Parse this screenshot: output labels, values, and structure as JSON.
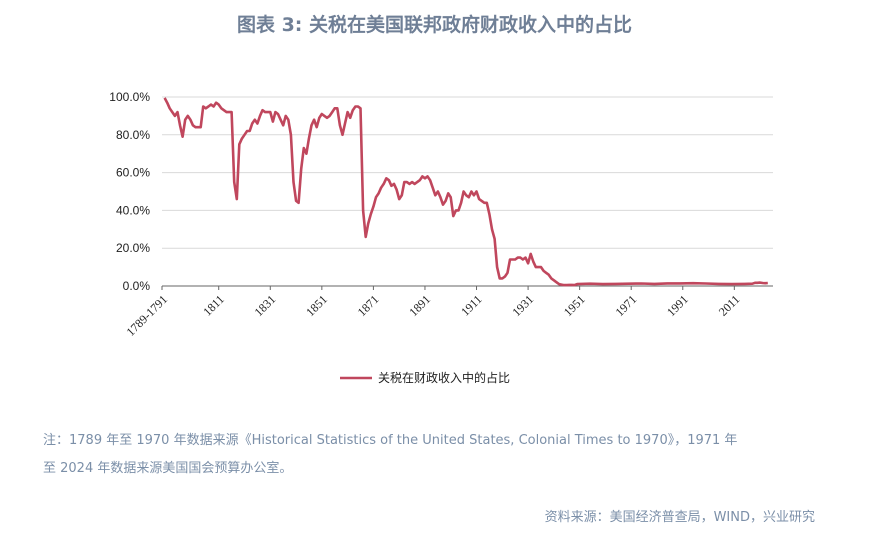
{
  "title": "图表 3:  关税在美国联邦政府财政收入中的占比",
  "note_line1": "注：1789 年至 1970 年数据来源《Historical Statistics of the United States, Colonial Times to 1970》，1971 年",
  "note_line2": "至 2024 年数据来源美国国会预算办公室。",
  "source": "资料来源：美国经济普查局，WIND，兴业研究",
  "colors": {
    "series": "#c0475d",
    "grid": "#d9d9d9",
    "axis": "#666666"
  },
  "chart_data": {
    "type": "line",
    "series": [
      {
        "name": "关税在财政收入中的占比",
        "x": [
          1790,
          1791,
          1792,
          1793,
          1794,
          1795,
          1796,
          1797,
          1798,
          1799,
          1800,
          1801,
          1802,
          1803,
          1804,
          1805,
          1806,
          1807,
          1808,
          1809,
          1810,
          1811,
          1812,
          1813,
          1814,
          1815,
          1816,
          1817,
          1818,
          1819,
          1820,
          1821,
          1822,
          1823,
          1824,
          1825,
          1826,
          1827,
          1828,
          1829,
          1830,
          1831,
          1832,
          1833,
          1834,
          1835,
          1836,
          1837,
          1838,
          1839,
          1840,
          1841,
          1842,
          1843,
          1844,
          1845,
          1846,
          1847,
          1848,
          1849,
          1850,
          1851,
          1852,
          1853,
          1854,
          1855,
          1856,
          1857,
          1858,
          1859,
          1860,
          1861,
          1862,
          1863,
          1864,
          1865,
          1866,
          1867,
          1868,
          1869,
          1870,
          1871,
          1872,
          1873,
          1874,
          1875,
          1876,
          1877,
          1878,
          1879,
          1880,
          1881,
          1882,
          1883,
          1884,
          1885,
          1886,
          1887,
          1888,
          1889,
          1890,
          1891,
          1892,
          1893,
          1894,
          1895,
          1896,
          1897,
          1898,
          1899,
          1900,
          1901,
          1902,
          1903,
          1904,
          1905,
          1906,
          1907,
          1908,
          1909,
          1910,
          1911,
          1912,
          1913,
          1914,
          1915,
          1916,
          1917,
          1918,
          1919,
          1920,
          1921,
          1922,
          1923,
          1924,
          1925,
          1926,
          1927,
          1928,
          1929,
          1930,
          1931,
          1932,
          1933,
          1934,
          1935,
          1936,
          1937,
          1938,
          1939,
          1940,
          1941,
          1942,
          1943,
          1944,
          1945,
          1946,
          1947,
          1948,
          1949,
          1950,
          1955,
          1960,
          1965,
          1970,
          1975,
          1980,
          1985,
          1990,
          1995,
          2000,
          2005,
          2010,
          2015,
          2018,
          2019,
          2020,
          2021,
          2022,
          2023,
          2024
        ],
        "values": [
          99.5,
          97,
          94,
          92,
          90,
          92,
          85,
          79,
          88,
          90,
          88,
          85,
          84,
          84,
          84,
          95,
          94,
          95,
          96,
          95,
          97,
          96,
          94,
          93,
          92,
          92,
          92,
          55,
          46,
          75,
          78,
          80,
          82,
          82,
          86,
          88,
          86,
          90,
          93,
          92,
          92,
          92,
          87,
          92,
          91,
          88,
          85,
          90,
          88,
          80,
          55,
          45,
          44,
          62,
          73,
          70,
          78,
          85,
          88,
          84,
          89,
          91,
          90,
          89,
          90,
          92,
          94,
          94,
          85,
          80,
          86,
          92,
          89,
          93,
          95,
          95,
          94,
          40,
          26,
          33,
          38,
          42,
          47,
          49,
          52,
          54,
          57,
          56,
          53,
          54,
          51,
          46,
          48,
          55,
          55,
          54,
          55,
          54,
          55,
          56,
          58,
          57,
          58,
          56,
          52,
          48,
          50,
          47,
          43,
          45,
          49,
          47,
          37,
          40,
          40,
          44,
          50,
          48,
          47,
          50,
          48,
          50,
          46,
          45,
          44,
          44,
          38,
          30,
          25,
          10,
          4,
          4,
          5,
          7,
          14,
          14,
          14,
          15,
          15,
          14,
          15,
          12,
          17,
          13,
          10,
          10,
          10,
          8,
          7,
          6,
          4,
          3,
          2,
          1,
          0.7,
          0.5,
          0.5,
          0.6,
          0.6,
          0.5,
          1.0,
          1.2,
          1.0,
          1.1,
          1.2,
          1.3,
          1.1,
          1.4,
          1.4,
          1.5,
          1.3,
          1.1,
          1.0,
          1.1,
          1.2,
          1.7,
          1.7,
          1.8,
          1.6,
          1.5,
          1.6
        ]
      }
    ],
    "x_tick_labels": [
      "1789-1791",
      "1811",
      "1831",
      "1851",
      "1871",
      "1891",
      "1911",
      "1931",
      "1951",
      "1971",
      "1991",
      "2011"
    ],
    "x_tick_positions": [
      1789,
      1811,
      1831,
      1851,
      1871,
      1891,
      1911,
      1931,
      1951,
      1971,
      1991,
      2011
    ],
    "y_tick_labels": [
      "100.0%",
      "80.0%",
      "60.0%",
      "40.0%",
      "20.0%",
      "0.0%"
    ],
    "y_tick_values": [
      100,
      80,
      60,
      40,
      20,
      0
    ],
    "xlim": [
      1789,
      2026
    ],
    "ylim": [
      0,
      100
    ],
    "grid": "horizontal",
    "legend_position": "bottom-center",
    "legend_label": "关税在财政收入中的占比"
  }
}
